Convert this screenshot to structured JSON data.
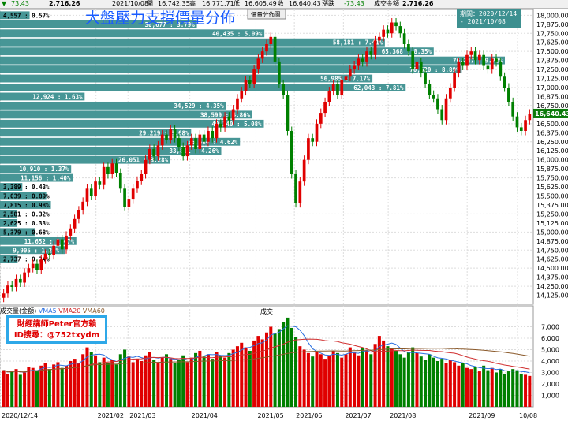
{
  "header": {
    "left_arrow": "▼",
    "change_pts": "73.43",
    "volume": "2,716.26",
    "date": "2021/10/08",
    "open_label": "開",
    "open": "16,742.35",
    "high_label": "高",
    "high": "16,771.71",
    "low_label": "低",
    "low": "16,605.49",
    "close_label": "收",
    "close": "16,640.43",
    "chg_label": "漲跌",
    "chg": "-73.43",
    "vol_label": "成交金額",
    "vol_val": "2,716.26",
    "dist_btn": "價量分佈圖"
  },
  "title": "大盤壓力支撐價量分佈",
  "period": {
    "label": "期間：2020/12/14",
    "to": "-  2021/10/08"
  },
  "watermark": {
    "line1": "財經講師Peter官方賴",
    "line2": "ID搜尋：@752txydm"
  },
  "volume_panel": {
    "label": "成交量(金額)",
    "vma5": "VMA5",
    "vma20": "VMA20",
    "vma60": "VMA60",
    "center_label": "成交"
  },
  "colors": {
    "up": "#e00000",
    "down": "#008000",
    "bar": "#3d9090",
    "vma5": "#2a6fe0",
    "vma20": "#d03030",
    "vma60": "#8b5a2b"
  },
  "chart_data": {
    "type": "candlestick-with-volume-profile",
    "price_ticks": [
      "18,000.00",
      "17,750.00",
      "17,500.00",
      "17,250.00",
      "17,000.00",
      "16,750.00",
      "16,500.00",
      "16,250.00",
      "16,000.00",
      "15,750.00",
      "15,500.00",
      "15,250.00",
      "15,000.00",
      "14,750.00",
      "14,500.00",
      "14,250.00"
    ],
    "price_tick_values": [
      18000,
      17750,
      17500,
      17250,
      17000,
      16750,
      16500,
      16250,
      16000,
      15750,
      15500,
      15250,
      15000,
      14750,
      14500,
      14250
    ],
    "alt_price_ticks": [
      "17,875.00",
      "17,625.00",
      "17,375.00",
      "17,125.00",
      "16,875.00",
      "16,625.00",
      "16,375.00",
      "16,125.00",
      "15,875.00",
      "15,625.00",
      "15,375.00",
      "15,125.00",
      "14,875.00",
      "14,625.00",
      "14,375.00",
      "14,125.00"
    ],
    "alt_price_tick_values": [
      17875,
      17625,
      17375,
      17125,
      16875,
      16625,
      16375,
      16125,
      15875,
      15625,
      15375,
      15125,
      14875,
      14625,
      14375,
      14125
    ],
    "price_ylim": [
      14000,
      18080
    ],
    "last_price_label": "16,640.43",
    "last_price": 16640.43,
    "volume_ticks": [
      "7,000",
      "6,000",
      "5,000",
      "4,000",
      "3,000",
      "2,000",
      "1,000"
    ],
    "volume_tick_values": [
      7000,
      6000,
      5000,
      4000,
      3000,
      2000,
      1000
    ],
    "volume_ylim": [
      0,
      8000
    ],
    "x_labels": [
      "2020/12/14",
      "2021/02",
      "2021/03",
      "2021/04",
      "2021/05",
      "2021/06",
      "2021/07",
      "2021/08",
      "2021/09",
      "10/08"
    ],
    "x_label_positions": [
      0.0,
      0.225,
      0.3,
      0.445,
      0.6,
      0.69,
      0.805,
      0.91,
      1.095,
      1.225
    ],
    "profile": [
      {
        "price": 18000,
        "label": "4,557 : 0.57%",
        "pct": 0.57
      },
      {
        "price": 17875,
        "label": "30,677 : 3.79%",
        "pct": 3.79
      },
      {
        "price": 17750,
        "label": "40,435 : 5.09%",
        "pct": 5.09
      },
      {
        "price": 17625,
        "label": "58,181 : 7.41%",
        "pct": 7.41
      },
      {
        "price": 17500,
        "label": "65,368 : 8.35%",
        "pct": 8.35
      },
      {
        "price": 17375,
        "label": "76,247 : 9.72%",
        "pct": 9.72
      },
      {
        "price": 17250,
        "label": "70,620 : 8.89%",
        "pct": 8.89
      },
      {
        "price": 17125,
        "label": "56,985 : 7.17%",
        "pct": 7.17
      },
      {
        "price": 17000,
        "label": "62,043 : 7.81%",
        "pct": 7.81
      },
      {
        "price": 16875,
        "label": "12,924 : 1.63%",
        "pct": 1.63
      },
      {
        "price": 16750,
        "label": "34,529 : 4.35%",
        "pct": 4.35
      },
      {
        "price": 16625,
        "label": "38,599 : 4.86%",
        "pct": 4.86
      },
      {
        "price": 16500,
        "label": "40,340 : 5.08%",
        "pct": 5.08
      },
      {
        "price": 16375,
        "label": "29,219 : 3.68%",
        "pct": 3.68
      },
      {
        "price": 16250,
        "label": "36,684 : 4.62%",
        "pct": 4.62
      },
      {
        "price": 16125,
        "label": "33,811 : 4.26%",
        "pct": 4.26
      },
      {
        "price": 16000,
        "label": "26,051 : 3.28%",
        "pct": 3.28
      },
      {
        "price": 15875,
        "label": "10,910 : 1.37%",
        "pct": 1.37
      },
      {
        "price": 15750,
        "label": "11,156 : 1.40%",
        "pct": 1.4
      },
      {
        "price": 15625,
        "label": "3,389 : 0.43%",
        "pct": 0.43
      },
      {
        "price": 15500,
        "label": "7,039 : 0.89%",
        "pct": 0.89
      },
      {
        "price": 15375,
        "label": "7,815 : 0.98%",
        "pct": 0.98
      },
      {
        "price": 15250,
        "label": "2,581 : 0.32%",
        "pct": 0.32
      },
      {
        "price": 15125,
        "label": "2,625 : 0.33%",
        "pct": 0.33
      },
      {
        "price": 15000,
        "label": "5,379 : 0.68%",
        "pct": 0.68
      },
      {
        "price": 14875,
        "label": "11,652 : 1.47%",
        "pct": 1.47
      },
      {
        "price": 14750,
        "label": "9,905 : 1.25%",
        "pct": 1.25
      },
      {
        "price": 14625,
        "label": "2,737 : 0.34%",
        "pct": 0.34
      }
    ],
    "closes": [
      14150,
      14260,
      14240,
      14350,
      14300,
      14440,
      14500,
      14560,
      14480,
      14620,
      14700,
      14680,
      14810,
      14900,
      14760,
      14950,
      15050,
      15180,
      15300,
      15420,
      15600,
      15500,
      15700,
      15650,
      15900,
      15800,
      15950,
      15820,
      15600,
      15350,
      15450,
      15600,
      15710,
      15800,
      16000,
      16150,
      16050,
      16200,
      16350,
      16280,
      16420,
      16300,
      16180,
      16050,
      16200,
      16300,
      16150,
      16350,
      16250,
      16400,
      16300,
      16500,
      16450,
      16600,
      16550,
      16700,
      16850,
      16950,
      17100,
      17050,
      17250,
      17400,
      17500,
      17600,
      17700,
      17350,
      17050,
      16900,
      16400,
      15800,
      15400,
      15700,
      16000,
      16300,
      16250,
      16500,
      16650,
      16800,
      16950,
      17050,
      16900,
      17100,
      17150,
      17250,
      17300,
      17400,
      17350,
      17500,
      17450,
      17650,
      17700,
      17800,
      17750,
      17900,
      17850,
      17750,
      17600,
      17500,
      17250,
      17350,
      17200,
      17050,
      16900,
      16850,
      16700,
      16550,
      16850,
      17000,
      17200,
      17350,
      17300,
      17450,
      17500,
      17380,
      17450,
      17300,
      17250,
      17400,
      17350,
      17150,
      17000,
      16800,
      16600,
      16450,
      16400,
      16550,
      16640
    ],
    "volumes": [
      3200,
      2900,
      3100,
      3300,
      2800,
      3000,
      3500,
      3400,
      3100,
      3600,
      3800,
      3300,
      3700,
      3900,
      3400,
      3600,
      4000,
      4200,
      3800,
      4600,
      5200,
      4800,
      4500,
      3900,
      4300,
      3800,
      4100,
      3700,
      4600,
      5000,
      4400,
      3900,
      4200,
      4000,
      4500,
      4800,
      4100,
      3900,
      4300,
      4600,
      4200,
      3800,
      4100,
      4500,
      3900,
      4300,
      4700,
      4900,
      4400,
      4600,
      4200,
      4800,
      4500,
      4300,
      4700,
      5000,
      5300,
      5600,
      5200,
      4900,
      5800,
      6200,
      5900,
      6500,
      7000,
      6400,
      6800,
      7400,
      7800,
      6900,
      6100,
      5300,
      5000,
      4700,
      4400,
      4800,
      4600,
      4200,
      4500,
      4900,
      4700,
      4300,
      4600,
      5200,
      4800,
      4500,
      5100,
      4900,
      4600,
      5500,
      6200,
      5800,
      5300,
      5100,
      4900,
      4600,
      4300,
      4800,
      5200,
      4700,
      4400,
      4100,
      4600,
      4300,
      4000,
      4200,
      3800,
      4100,
      3900,
      3600,
      3800,
      3400,
      3300,
      3500,
      3100,
      3600,
      3200,
      3400,
      3000,
      3300,
      2900,
      3100,
      3300,
      3200,
      2900,
      2800,
      2700
    ]
  }
}
